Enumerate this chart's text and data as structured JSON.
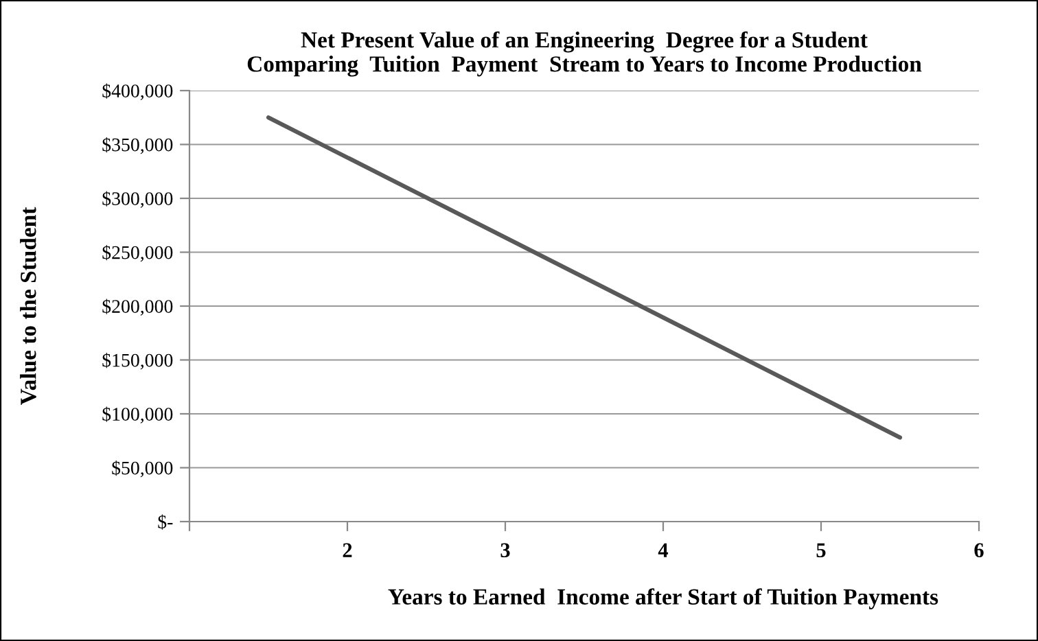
{
  "chart_data": {
    "type": "line",
    "title": "Net Present Value of an Engineering  Degree for a Student\nComparing  Tuition  Payment  Stream to Years to Income Production",
    "xlabel": "Years to Earned  Income after Start of Tuition Payments",
    "ylabel": "Value to the Student",
    "x": [
      1.5,
      5.5
    ],
    "series": [
      {
        "color": "#595959",
        "values": [
          375000,
          78000
        ]
      }
    ],
    "xlim": [
      1,
      6
    ],
    "xticks": [
      {
        "value": 1,
        "label": null
      },
      2,
      3,
      4,
      5,
      6
    ],
    "ylim": [
      0,
      400000
    ],
    "yticks": [
      {
        "value": 0,
        "label": "$-"
      },
      {
        "value": 50000,
        "label": "$50,000"
      },
      {
        "value": 100000,
        "label": "$100,000"
      },
      {
        "value": 150000,
        "label": "$150,000"
      },
      {
        "value": 200000,
        "label": "$200,000"
      },
      {
        "value": 250000,
        "label": "$250,000"
      },
      {
        "value": 300000,
        "label": "$300,000"
      },
      {
        "value": 350000,
        "label": "$350,000"
      },
      {
        "value": 400000,
        "label": "$400,000"
      }
    ],
    "grid": "y",
    "legend": false
  }
}
